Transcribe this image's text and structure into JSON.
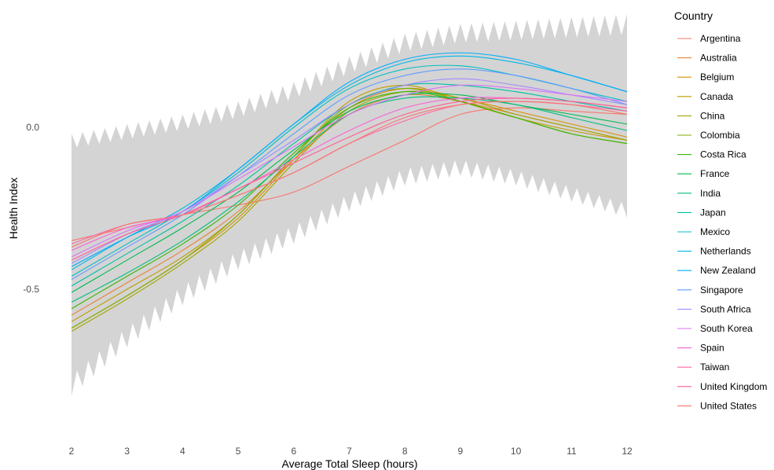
{
  "chart_data": {
    "type": "line",
    "title": "",
    "xlabel": "Average Total Sleep (hours)",
    "ylabel": "Health Index",
    "xlim": [
      2,
      12
    ],
    "ylim": [
      -0.85,
      0.37
    ],
    "x_ticks": [
      2,
      3,
      4,
      5,
      6,
      7,
      8,
      9,
      10,
      11,
      12
    ],
    "y_ticks": [
      0.0,
      -0.5
    ],
    "y_tick_labels": [
      "0.0",
      "-0.5"
    ],
    "grid": false,
    "legend": {
      "title": "Country",
      "position": "right"
    },
    "x": [
      2,
      3,
      4,
      5,
      6,
      7,
      8,
      9,
      10,
      11,
      12
    ],
    "confidence_band": {
      "upper": [
        -0.02,
        0.01,
        0.04,
        0.08,
        0.14,
        0.22,
        0.29,
        0.32,
        0.33,
        0.34,
        0.35
      ],
      "lower": [
        -0.83,
        -0.68,
        -0.55,
        -0.44,
        -0.36,
        -0.26,
        -0.18,
        -0.15,
        -0.18,
        -0.23,
        -0.28
      ]
    },
    "series": [
      {
        "name": "Argentina",
        "color": "#F8766D",
        "values": [
          -0.35,
          -0.31,
          -0.27,
          -0.24,
          -0.2,
          -0.12,
          -0.04,
          0.04,
          0.06,
          0.05,
          0.04
        ]
      },
      {
        "name": "Australia",
        "color": "#EA8331",
        "values": [
          -0.58,
          -0.48,
          -0.38,
          -0.26,
          -0.1,
          0.04,
          0.1,
          0.08,
          0.04,
          0.0,
          -0.04
        ]
      },
      {
        "name": "Belgium",
        "color": "#D89000",
        "values": [
          -0.62,
          -0.52,
          -0.41,
          -0.28,
          -0.1,
          0.06,
          0.12,
          0.09,
          0.05,
          0.01,
          -0.03
        ]
      },
      {
        "name": "Canada",
        "color": "#C09B00",
        "values": [
          -0.6,
          -0.5,
          -0.4,
          -0.27,
          -0.09,
          0.08,
          0.13,
          0.08,
          0.03,
          -0.01,
          -0.04
        ]
      },
      {
        "name": "China",
        "color": "#A3A500",
        "values": [
          -0.63,
          -0.53,
          -0.42,
          -0.29,
          -0.11,
          0.05,
          0.11,
          0.09,
          0.04,
          0.0,
          -0.04
        ]
      },
      {
        "name": "Colombia",
        "color": "#7CAE00",
        "values": [
          -0.62,
          -0.52,
          -0.41,
          -0.27,
          -0.09,
          0.07,
          0.12,
          0.08,
          0.03,
          -0.02,
          -0.05
        ]
      },
      {
        "name": "Costa Rica",
        "color": "#39B600",
        "values": [
          -0.56,
          -0.46,
          -0.36,
          -0.24,
          -0.08,
          0.06,
          0.11,
          0.08,
          0.03,
          -0.02,
          -0.05
        ]
      },
      {
        "name": "France",
        "color": "#00BB4E",
        "values": [
          -0.51,
          -0.41,
          -0.31,
          -0.2,
          -0.07,
          0.05,
          0.1,
          0.1,
          0.07,
          0.04,
          0.01
        ]
      },
      {
        "name": "India",
        "color": "#00BF7D",
        "values": [
          -0.54,
          -0.45,
          -0.35,
          -0.23,
          -0.09,
          0.04,
          0.09,
          0.09,
          0.07,
          0.03,
          -0.01
        ]
      },
      {
        "name": "Japan",
        "color": "#00C1A3",
        "values": [
          -0.49,
          -0.39,
          -0.29,
          -0.18,
          -0.05,
          0.07,
          0.13,
          0.13,
          0.11,
          0.08,
          0.05
        ]
      },
      {
        "name": "Mexico",
        "color": "#00BFC4",
        "values": [
          -0.46,
          -0.36,
          -0.26,
          -0.14,
          0.0,
          0.12,
          0.18,
          0.19,
          0.16,
          0.12,
          0.08
        ]
      },
      {
        "name": "Netherlands",
        "color": "#00B8E7",
        "values": [
          -0.44,
          -0.34,
          -0.25,
          -0.13,
          0.01,
          0.13,
          0.2,
          0.22,
          0.2,
          0.16,
          0.11
        ]
      },
      {
        "name": "New Zealand",
        "color": "#00ABFD",
        "values": [
          -0.43,
          -0.34,
          -0.26,
          -0.13,
          0.01,
          0.14,
          0.21,
          0.23,
          0.21,
          0.16,
          0.11
        ]
      },
      {
        "name": "Singapore",
        "color": "#619CFF",
        "values": [
          -0.47,
          -0.37,
          -0.27,
          -0.15,
          -0.02,
          0.1,
          0.16,
          0.18,
          0.16,
          0.12,
          0.07
        ]
      },
      {
        "name": "South Africa",
        "color": "#A58AFF",
        "values": [
          -0.42,
          -0.33,
          -0.26,
          -0.15,
          -0.04,
          0.07,
          0.13,
          0.15,
          0.13,
          0.1,
          0.07
        ]
      },
      {
        "name": "South Korea",
        "color": "#DF70F8",
        "values": [
          -0.4,
          -0.32,
          -0.26,
          -0.16,
          -0.06,
          0.04,
          0.1,
          0.13,
          0.12,
          0.1,
          0.08
        ]
      },
      {
        "name": "Spain",
        "color": "#FB61D7",
        "values": [
          -0.38,
          -0.31,
          -0.27,
          -0.19,
          -0.1,
          -0.01,
          0.06,
          0.09,
          0.09,
          0.08,
          0.06
        ]
      },
      {
        "name": "Taiwan",
        "color": "#FF66A8",
        "values": [
          -0.36,
          -0.3,
          -0.27,
          -0.21,
          -0.14,
          -0.05,
          0.02,
          0.07,
          0.08,
          0.07,
          0.05
        ]
      },
      {
        "name": "United Kingdom",
        "color": "#FF5E8F",
        "values": [
          -0.41,
          -0.33,
          -0.27,
          -0.19,
          -0.11,
          -0.03,
          0.04,
          0.08,
          0.09,
          0.08,
          0.06
        ]
      },
      {
        "name": "United States",
        "color": "#F8766D",
        "values": [
          -0.37,
          -0.3,
          -0.27,
          -0.21,
          -0.14,
          -0.05,
          0.03,
          0.07,
          0.08,
          0.07,
          0.04
        ]
      }
    ]
  }
}
